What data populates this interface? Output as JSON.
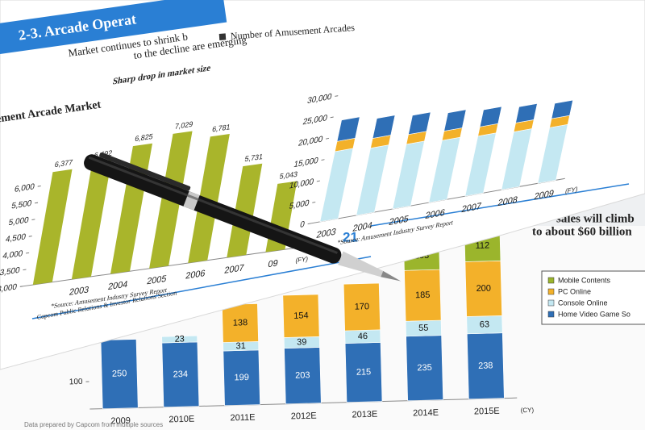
{
  "header": {
    "title": "2-3.  Arcade Operat",
    "subtitle_lines": [
      "Market continues to shrink b",
      "to the decline are emerging"
    ]
  },
  "left_page": {
    "heading": "ement Arcade Market",
    "footer": "Capcom Public Relations & Investor Relations Section"
  },
  "page_number": "21",
  "chart_data": [
    {
      "type": "bar",
      "title": "Sharp drop in market size",
      "categories": [
        null,
        "2003",
        "2004",
        "2005",
        "2006",
        "2007",
        "09"
      ],
      "x_label": "(FY)",
      "values": [
        6377,
        6492,
        6825,
        7029,
        6781,
        5731,
        5043
      ],
      "value_labels": [
        "6,377",
        "6,492",
        "6,825",
        "7,029",
        "6,781",
        "5,731",
        "5,043"
      ],
      "color": "#a9b52b",
      "data_labels": true,
      "ylim": [
        3000,
        7500
      ],
      "yticks": [
        {
          "value": 3000,
          "label": "3,000"
        },
        {
          "value": 3500,
          "label": "3,500"
        },
        {
          "value": 4000,
          "label": "4,000"
        },
        {
          "value": 4500,
          "label": "4,500"
        },
        {
          "value": 5000,
          "label": "5,000"
        },
        {
          "value": 5500,
          "label": "5,500"
        },
        {
          "value": 6000,
          "label": "6,000"
        }
      ],
      "source": "*Source: Amusement Industry Survey Report"
    },
    {
      "type": "stacked_bar",
      "legend_title": "Number of Amusement Arcades",
      "categories": [
        "2003",
        "2004",
        "2005",
        "2006",
        "2007",
        "2008",
        "2009"
      ],
      "x_label": "(FY)",
      "series": [
        {
          "color": "#c4e8f2",
          "values": [
            16500,
            15800,
            15200,
            14600,
            14100,
            13600,
            13100
          ]
        },
        {
          "color": "#f3b12a",
          "values": [
            2400,
            2300,
            2300,
            2200,
            2200,
            2100,
            2100
          ]
        },
        {
          "color": "#2f6fb6",
          "values": [
            5000,
            4700,
            4500,
            4300,
            4000,
            3800,
            3600
          ]
        }
      ],
      "ylim": [
        0,
        30000
      ],
      "yticks": [
        0,
        {
          "value": 5000,
          "label": "5,000"
        },
        {
          "value": 10000,
          "label": "10,000"
        },
        {
          "value": 15000,
          "label": "15,000"
        },
        {
          "value": 20000,
          "label": "20,000"
        },
        {
          "value": 25000,
          "label": "25,000"
        },
        {
          "value": 30000,
          "label": "30,000"
        }
      ],
      "source": "*Source: Amusement Industry Survey Report"
    },
    {
      "type": "stacked_bar",
      "title_lines": [
        "sales will climb",
        "to about $60 billion"
      ],
      "categories": [
        "2009",
        "2010E",
        "2011E",
        "2012E",
        "2013E",
        "2014E",
        "2015E"
      ],
      "x_label": "(CY)",
      "series": [
        {
          "name": "Home Video Game So",
          "color": "#2f6fb6",
          "values": [
            250,
            234,
            199,
            203,
            215,
            235,
            238
          ]
        },
        {
          "name": "Console Online",
          "color": "#c4e8f2",
          "values": [
            null,
            23,
            31,
            39,
            46,
            55,
            63
          ]
        },
        {
          "name": "PC Online",
          "color": "#f3b12a",
          "values": [
            null,
            null,
            138,
            154,
            170,
            185,
            200
          ]
        },
        {
          "name": "Mobile Contents",
          "color": "#9bb52c",
          "values": [
            null,
            null,
            null,
            null,
            null,
            103,
            112
          ]
        }
      ],
      "data_labels": true,
      "legend": "right",
      "ylim": [
        0,
        600
      ],
      "yticks": [
        100
      ],
      "footnote": "Data prepared by Capcom from multiple sources"
    }
  ]
}
